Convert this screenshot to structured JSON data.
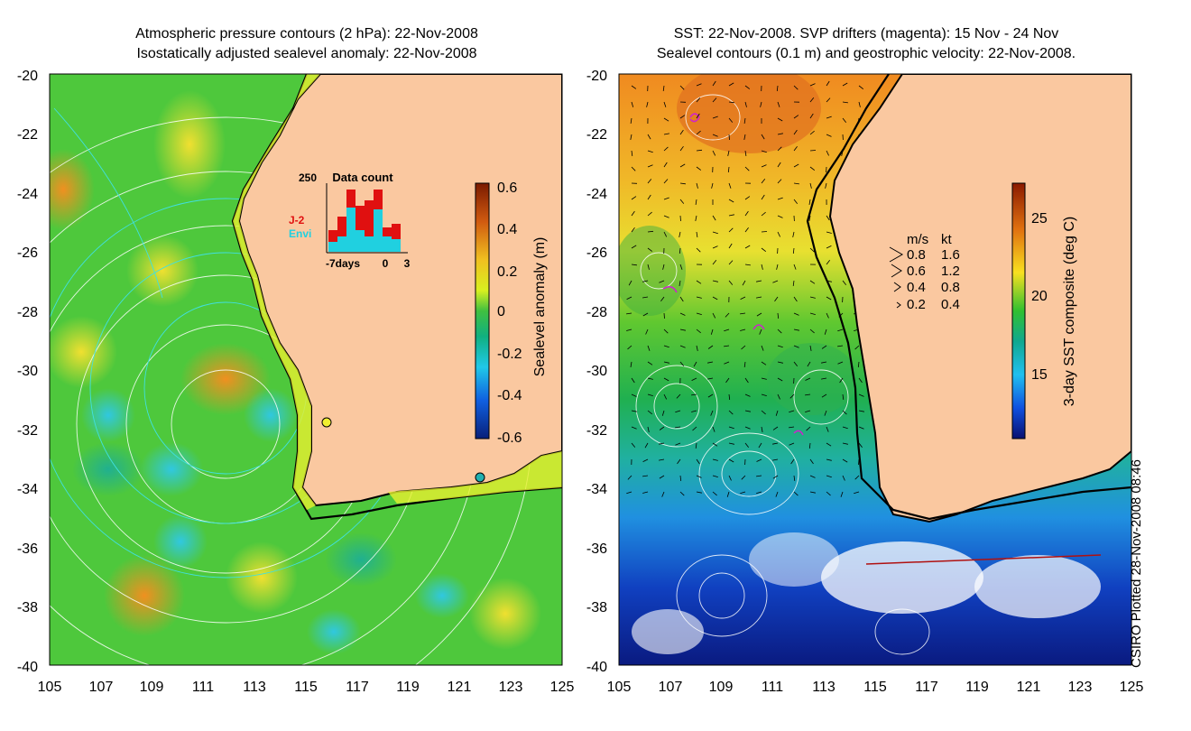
{
  "left_panel": {
    "title_line1": "Atmospheric pressure contours (2 hPa): 22-Nov-2008",
    "title_line2": "Isostatically adjusted sealevel anomaly: 22-Nov-2008",
    "x_ticks": [
      "105",
      "107",
      "109",
      "111",
      "113",
      "115",
      "117",
      "119",
      "121",
      "123",
      "125"
    ],
    "y_ticks": [
      "-20",
      "-22",
      "-24",
      "-26",
      "-28",
      "-30",
      "-32",
      "-34",
      "-36",
      "-38",
      "-40"
    ],
    "colorbar": {
      "label": "Sealevel anomaly (m)",
      "ticks": [
        "0.6",
        "0.4",
        "0.2",
        "0",
        "-0.2",
        "-0.4",
        "-0.6"
      ],
      "range": [
        -0.6,
        0.6
      ]
    },
    "inset": {
      "title": "Data count",
      "max_label": "250",
      "legend_j2": "J-2",
      "legend_envi": "Envi",
      "legend_j2_color": "#e01010",
      "legend_envi_color": "#20d0e0",
      "x_labels": [
        "-7days",
        "0",
        "3"
      ]
    }
  },
  "right_panel": {
    "title_line1": "SST: 22-Nov-2008. SVP drifters (magenta): 15 Nov - 24 Nov",
    "title_line2": "Sealevel contours (0.1 m) and geostrophic velocity: 22-Nov-2008.",
    "x_ticks": [
      "105",
      "107",
      "109",
      "111",
      "113",
      "115",
      "117",
      "119",
      "121",
      "123",
      "125"
    ],
    "y_ticks": [
      "-20",
      "-22",
      "-24",
      "-26",
      "-28",
      "-30",
      "-32",
      "-34",
      "-36",
      "-38",
      "-40"
    ],
    "colorbar": {
      "label": "3-day SST composite (deg C)",
      "ticks": [
        "25",
        "20",
        "15"
      ],
      "range": [
        12,
        27
      ]
    },
    "velocity_key": {
      "header_ms": "m/s",
      "header_kt": "kt",
      "rows": [
        {
          "ms": "0.8",
          "kt": "1.6"
        },
        {
          "ms": "0.6",
          "kt": "1.2"
        },
        {
          "ms": "0.4",
          "kt": "0.8"
        },
        {
          "ms": "0.2",
          "kt": "0.4"
        }
      ]
    }
  },
  "footer_vertical": "CSIRO Plotted 28-Nov-2008 08:46",
  "colors": {
    "land": "#fac8a0",
    "coast_line": "#000000",
    "pressure_contour": "#ffffff",
    "sealevel_contour": "#40e0e0",
    "drifter": "#d020d0"
  }
}
